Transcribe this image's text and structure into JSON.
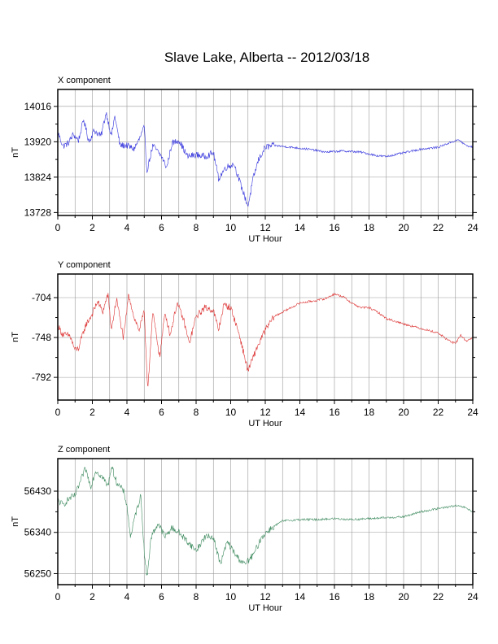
{
  "title": "Slave Lake, Alberta -- 2012/03/18",
  "chart_data": [
    {
      "type": "line",
      "panel_title": "X component",
      "xlabel": "UT Hour",
      "ylabel": "nT",
      "xlim": [
        0,
        24
      ],
      "ylim": [
        13720,
        14062
      ],
      "xticks": [
        0,
        2,
        4,
        6,
        8,
        10,
        12,
        14,
        16,
        18,
        20,
        22,
        24
      ],
      "yticks": [
        13728,
        13824,
        13920,
        14016
      ],
      "grid": true,
      "color": "#3333dd",
      "keypoints": [
        [
          0,
          13947
        ],
        [
          0.3,
          13908
        ],
        [
          0.6,
          13916
        ],
        [
          0.9,
          13940
        ],
        [
          1.2,
          13924
        ],
        [
          1.5,
          13980
        ],
        [
          1.8,
          13920
        ],
        [
          2.1,
          13951
        ],
        [
          2.5,
          13935
        ],
        [
          2.8,
          14000
        ],
        [
          3.1,
          13935
        ],
        [
          3.3,
          13990
        ],
        [
          3.6,
          13910
        ],
        [
          4.0,
          13910
        ],
        [
          4.4,
          13900
        ],
        [
          4.7,
          13925
        ],
        [
          5.0,
          13960
        ],
        [
          5.15,
          13840
        ],
        [
          5.5,
          13910
        ],
        [
          6.0,
          13880
        ],
        [
          6.3,
          13850
        ],
        [
          6.6,
          13915
        ],
        [
          7.0,
          13925
        ],
        [
          7.5,
          13880
        ],
        [
          8.0,
          13885
        ],
        [
          8.5,
          13880
        ],
        [
          9.0,
          13890
        ],
        [
          9.3,
          13820
        ],
        [
          9.7,
          13850
        ],
        [
          10.2,
          13860
        ],
        [
          10.6,
          13800
        ],
        [
          11.0,
          13745
        ],
        [
          11.3,
          13820
        ],
        [
          11.6,
          13870
        ],
        [
          12.0,
          13905
        ],
        [
          12.5,
          13910
        ],
        [
          13.5,
          13905
        ],
        [
          14.5,
          13900
        ],
        [
          15.5,
          13892
        ],
        [
          16.5,
          13895
        ],
        [
          17.5,
          13892
        ],
        [
          18.5,
          13882
        ],
        [
          19.0,
          13880
        ],
        [
          20.0,
          13890
        ],
        [
          21.0,
          13900
        ],
        [
          22.0,
          13905
        ],
        [
          22.8,
          13920
        ],
        [
          23.2,
          13925
        ],
        [
          23.6,
          13910
        ],
        [
          24,
          13905
        ]
      ]
    },
    {
      "type": "line",
      "panel_title": "Y component",
      "xlabel": "UT Hour",
      "ylabel": "nT",
      "xlim": [
        0,
        24
      ],
      "ylim": [
        -817,
        -678
      ],
      "xticks": [
        0,
        2,
        4,
        6,
        8,
        10,
        12,
        14,
        16,
        18,
        20,
        22,
        24
      ],
      "yticks": [
        -704,
        -748,
        -792
      ],
      "grid": true,
      "color": "#dd3333",
      "keypoints": [
        [
          0,
          -735
        ],
        [
          0.3,
          -745
        ],
        [
          0.7,
          -746
        ],
        [
          1.0,
          -762
        ],
        [
          1.2,
          -760
        ],
        [
          1.6,
          -735
        ],
        [
          2.0,
          -722
        ],
        [
          2.3,
          -708
        ],
        [
          2.6,
          -720
        ],
        [
          2.9,
          -700
        ],
        [
          3.1,
          -740
        ],
        [
          3.4,
          -705
        ],
        [
          3.8,
          -750
        ],
        [
          4.1,
          -700
        ],
        [
          4.4,
          -725
        ],
        [
          4.7,
          -740
        ],
        [
          5.0,
          -720
        ],
        [
          5.2,
          -805
        ],
        [
          5.5,
          -720
        ],
        [
          5.9,
          -770
        ],
        [
          6.2,
          -720
        ],
        [
          6.5,
          -745
        ],
        [
          6.9,
          -710
        ],
        [
          7.3,
          -730
        ],
        [
          7.6,
          -755
        ],
        [
          8.0,
          -725
        ],
        [
          8.5,
          -715
        ],
        [
          9.0,
          -718
        ],
        [
          9.3,
          -740
        ],
        [
          9.6,
          -712
        ],
        [
          10.0,
          -715
        ],
        [
          10.5,
          -745
        ],
        [
          11.0,
          -785
        ],
        [
          11.5,
          -760
        ],
        [
          12.0,
          -740
        ],
        [
          12.5,
          -725
        ],
        [
          13.0,
          -720
        ],
        [
          14.0,
          -710
        ],
        [
          15.0,
          -707
        ],
        [
          15.5,
          -705
        ],
        [
          16.0,
          -700
        ],
        [
          16.5,
          -703
        ],
        [
          17.0,
          -710
        ],
        [
          17.5,
          -715
        ],
        [
          18.0,
          -715
        ],
        [
          18.5,
          -720
        ],
        [
          19.0,
          -727
        ],
        [
          20.0,
          -733
        ],
        [
          21.0,
          -738
        ],
        [
          22.0,
          -743
        ],
        [
          22.5,
          -750
        ],
        [
          23.0,
          -755
        ],
        [
          23.3,
          -745
        ],
        [
          23.6,
          -752
        ],
        [
          24,
          -748
        ]
      ]
    },
    {
      "type": "line",
      "panel_title": "Z component",
      "xlabel": "UT Hour",
      "ylabel": "nT",
      "xlim": [
        0,
        24
      ],
      "ylim": [
        56226,
        56501
      ],
      "xticks": [
        0,
        2,
        4,
        6,
        8,
        10,
        12,
        14,
        16,
        18,
        20,
        22,
        24
      ],
      "yticks": [
        56250,
        56340,
        56430
      ],
      "grid": true,
      "color": "#3d8a5e",
      "keypoints": [
        [
          0,
          56410
        ],
        [
          0.3,
          56400
        ],
        [
          0.7,
          56415
        ],
        [
          1.0,
          56420
        ],
        [
          1.3,
          56450
        ],
        [
          1.6,
          56480
        ],
        [
          1.9,
          56440
        ],
        [
          2.2,
          56475
        ],
        [
          2.6,
          56460
        ],
        [
          2.9,
          56440
        ],
        [
          3.1,
          56485
        ],
        [
          3.4,
          56450
        ],
        [
          3.8,
          56430
        ],
        [
          4.0,
          56400
        ],
        [
          4.2,
          56330
        ],
        [
          4.5,
          56380
        ],
        [
          4.8,
          56420
        ],
        [
          5.0,
          56300
        ],
        [
          5.15,
          56240
        ],
        [
          5.4,
          56330
        ],
        [
          5.8,
          56360
        ],
        [
          6.2,
          56330
        ],
        [
          6.6,
          56350
        ],
        [
          7.0,
          56340
        ],
        [
          7.5,
          56320
        ],
        [
          8.0,
          56300
        ],
        [
          8.5,
          56330
        ],
        [
          9.0,
          56330
        ],
        [
          9.4,
          56270
        ],
        [
          9.8,
          56320
        ],
        [
          10.3,
          56290
        ],
        [
          10.8,
          56270
        ],
        [
          11.3,
          56290
        ],
        [
          11.8,
          56330
        ],
        [
          12.3,
          56348
        ],
        [
          13.0,
          56365
        ],
        [
          14.0,
          56368
        ],
        [
          15.0,
          56368
        ],
        [
          16.0,
          56370
        ],
        [
          17.0,
          56368
        ],
        [
          18.0,
          56370
        ],
        [
          19.0,
          56372
        ],
        [
          20.0,
          56374
        ],
        [
          21.0,
          56385
        ],
        [
          22.0,
          56392
        ],
        [
          23.0,
          56398
        ],
        [
          23.5,
          56395
        ],
        [
          24,
          56385
        ]
      ]
    }
  ]
}
